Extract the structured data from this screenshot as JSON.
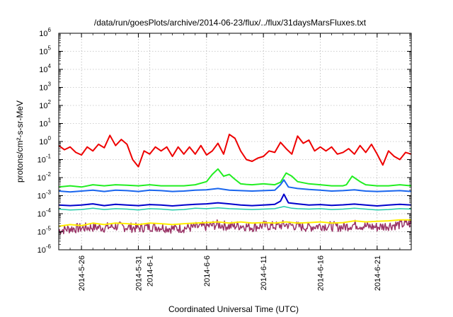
{
  "chart_data": {
    "type": "line",
    "title": "/data/run/goesPlots/archive/2014-06-23/flux/../flux/31daysMarsFluxes.txt",
    "xlabel": "Coordinated Universal Time (UTC)",
    "ylabel": "protons/cm²-s-sr-MeV",
    "yscale": "log",
    "ylim_exp": [
      -6,
      6
    ],
    "y_tick_exponents": [
      -6,
      -5,
      -4,
      -3,
      -2,
      -1,
      0,
      1,
      2,
      3,
      4,
      5,
      6
    ],
    "xlim_days": [
      0,
      31
    ],
    "x_ticks": [
      {
        "day": 2,
        "label": "2014-5-26"
      },
      {
        "day": 7,
        "label": "2014-5-31"
      },
      {
        "day": 8,
        "label": "2014-6-1"
      },
      {
        "day": 13,
        "label": "2014-6-6"
      },
      {
        "day": 18,
        "label": "2014-6-11"
      },
      {
        "day": 23,
        "label": "2014-6-16"
      },
      {
        "day": 28,
        "label": "2014-6-21"
      }
    ],
    "grid": true,
    "legend": "none",
    "series": [
      {
        "color": "#ee0000",
        "width": 2,
        "x": [
          0,
          0.5,
          1,
          1.5,
          2,
          2.5,
          3,
          3.5,
          4,
          4.5,
          5,
          5.5,
          6,
          6.5,
          7,
          7.5,
          8,
          8.5,
          9,
          9.5,
          10,
          10.5,
          11,
          11.5,
          12,
          12.5,
          13,
          13.5,
          14,
          14.5,
          15,
          15.5,
          16,
          16.5,
          17,
          17.5,
          18,
          18.5,
          19,
          19.5,
          20,
          20.5,
          21,
          21.5,
          22,
          22.5,
          23,
          23.5,
          24,
          24.5,
          25,
          25.5,
          26,
          26.5,
          27,
          27.5,
          28,
          28.5,
          29,
          29.5,
          30,
          30.5,
          31
        ],
        "y": [
          0.6,
          0.35,
          0.5,
          0.25,
          0.18,
          0.5,
          0.3,
          0.7,
          0.45,
          2.2,
          0.6,
          1.3,
          0.7,
          0.1,
          0.04,
          0.3,
          0.2,
          0.5,
          0.3,
          0.5,
          0.15,
          0.5,
          0.2,
          0.5,
          0.2,
          0.6,
          0.18,
          0.3,
          0.8,
          0.2,
          2.5,
          1.5,
          0.3,
          0.1,
          0.08,
          0.12,
          0.15,
          0.3,
          0.25,
          0.9,
          0.4,
          0.2,
          2.0,
          0.8,
          1.2,
          0.3,
          0.5,
          0.3,
          0.5,
          0.2,
          0.25,
          0.4,
          0.2,
          0.6,
          0.25,
          0.7,
          0.2,
          0.05,
          0.3,
          0.15,
          0.1,
          0.25,
          0.2
        ]
      },
      {
        "color": "#22ee22",
        "width": 2,
        "x": [
          0,
          1,
          2,
          3,
          4,
          5,
          6,
          7,
          8,
          9,
          10,
          11,
          12,
          13,
          13.5,
          14,
          14.5,
          15,
          15.5,
          16,
          16.5,
          17,
          18,
          19,
          19.5,
          20,
          20.5,
          21,
          22,
          23,
          24,
          25,
          25.3,
          25.8,
          26.5,
          27,
          28,
          29,
          30,
          31
        ],
        "y": [
          0.003,
          0.0035,
          0.003,
          0.004,
          0.0035,
          0.004,
          0.0038,
          0.0035,
          0.004,
          0.0035,
          0.0035,
          0.0035,
          0.004,
          0.006,
          0.015,
          0.03,
          0.012,
          0.015,
          0.008,
          0.0045,
          0.0042,
          0.004,
          0.0045,
          0.004,
          0.0055,
          0.018,
          0.012,
          0.006,
          0.0045,
          0.004,
          0.0035,
          0.0035,
          0.004,
          0.012,
          0.006,
          0.004,
          0.0035,
          0.0035,
          0.004,
          0.0035
        ]
      },
      {
        "color": "#1a66ee",
        "width": 2,
        "x": [
          0,
          1,
          2,
          3,
          4,
          5,
          6,
          7,
          8,
          9,
          10,
          11,
          12,
          13,
          14,
          15,
          16,
          17,
          18,
          19,
          19.5,
          19.8,
          20.2,
          21,
          22,
          23,
          24,
          25,
          26,
          27,
          28,
          29,
          30,
          31
        ],
        "y": [
          0.0018,
          0.0016,
          0.0018,
          0.002,
          0.0017,
          0.002,
          0.0019,
          0.0017,
          0.002,
          0.0019,
          0.0017,
          0.0018,
          0.002,
          0.0021,
          0.0025,
          0.002,
          0.0019,
          0.0018,
          0.0019,
          0.002,
          0.004,
          0.0075,
          0.003,
          0.0025,
          0.0022,
          0.002,
          0.0018,
          0.0019,
          0.0021,
          0.0018,
          0.0017,
          0.0018,
          0.0019,
          0.0017
        ]
      },
      {
        "color": "#0000cc",
        "width": 2,
        "x": [
          0,
          1,
          2,
          3,
          4,
          5,
          6,
          7,
          8,
          9,
          10,
          11,
          12,
          13,
          14,
          15,
          16,
          17,
          18,
          19,
          19.5,
          19.8,
          20.2,
          21,
          22,
          23,
          24,
          25,
          26,
          27,
          28,
          29,
          30,
          31
        ],
        "y": [
          0.0003,
          0.00028,
          0.0003,
          0.00035,
          0.00028,
          0.00033,
          0.0003,
          0.00028,
          0.00032,
          0.0003,
          0.00027,
          0.0003,
          0.00033,
          0.00035,
          0.0004,
          0.00035,
          0.0003,
          0.00028,
          0.0003,
          0.00033,
          0.0005,
          0.0012,
          0.0004,
          0.00035,
          0.0003,
          0.00032,
          0.00029,
          0.00031,
          0.00034,
          0.0003,
          0.00027,
          0.0003,
          0.00033,
          0.0003
        ]
      },
      {
        "color": "#22ccaa",
        "width": 1.5,
        "x": [
          0,
          1,
          2,
          3,
          4,
          5,
          6,
          7,
          8,
          9,
          10,
          11,
          12,
          13,
          14,
          15,
          16,
          17,
          18,
          19,
          19.8,
          20.5,
          21,
          22,
          23,
          24,
          25,
          26,
          27,
          28,
          29,
          30,
          31
        ],
        "y": [
          0.00018,
          0.00016,
          0.00017,
          0.0002,
          0.00017,
          0.00019,
          0.00018,
          0.00016,
          0.00019,
          0.00018,
          0.00016,
          0.00017,
          0.0002,
          0.00019,
          0.00021,
          0.00019,
          0.00018,
          0.00017,
          0.00018,
          0.00019,
          0.00025,
          0.0002,
          0.00019,
          0.00018,
          0.00019,
          0.00017,
          0.00018,
          0.0002,
          0.00018,
          0.00016,
          0.00017,
          0.00019,
          0.00018
        ]
      },
      {
        "color": "#ffee00",
        "width": 2,
        "x": [
          0,
          1,
          2,
          3,
          4,
          5,
          6,
          7,
          8,
          9,
          10,
          11,
          12,
          13,
          14,
          15,
          16,
          17,
          18,
          19,
          20,
          21,
          22,
          23,
          24,
          25,
          26,
          27,
          28,
          29,
          30,
          31
        ],
        "y": [
          2e-05,
          2.5e-05,
          2.2e-05,
          3e-05,
          2.5e-05,
          3e-05,
          2.8e-05,
          2.5e-05,
          3e-05,
          2.8e-05,
          2.5e-05,
          2.8e-05,
          3e-05,
          3.2e-05,
          3.5e-05,
          3e-05,
          3.5e-05,
          3e-05,
          3.2e-05,
          3e-05,
          3.5e-05,
          3e-05,
          3.2e-05,
          3.5e-05,
          3e-05,
          3.2e-05,
          4e-05,
          3.5e-05,
          3.8e-05,
          4e-05,
          4.5e-05,
          4.5e-05
        ]
      },
      {
        "color": "#993366",
        "width": 1.5,
        "noisy": true,
        "x": [
          0,
          1,
          2,
          3,
          4,
          5,
          6,
          7,
          8,
          9,
          10,
          11,
          12,
          13,
          14,
          15,
          16,
          17,
          18,
          19,
          20,
          21,
          22,
          23,
          24,
          25,
          26,
          27,
          28,
          29,
          30,
          31
        ],
        "y": [
          1.2e-05,
          1.5e-05,
          1.6e-05,
          1.8e-05,
          1.7e-05,
          2e-05,
          1.8e-05,
          1.6e-05,
          1.9e-05,
          1.8e-05,
          1.5e-05,
          1.6e-05,
          1.8e-05,
          2e-05,
          2.5e-05,
          2e-05,
          2.2e-05,
          1.8e-05,
          2.2e-05,
          2e-05,
          2.5e-05,
          2e-05,
          1.8e-05,
          2.2e-05,
          2e-05,
          1.8e-05,
          2.5e-05,
          2e-05,
          1.8e-05,
          2.2e-05,
          2.5e-05,
          2.8e-05
        ]
      }
    ]
  }
}
